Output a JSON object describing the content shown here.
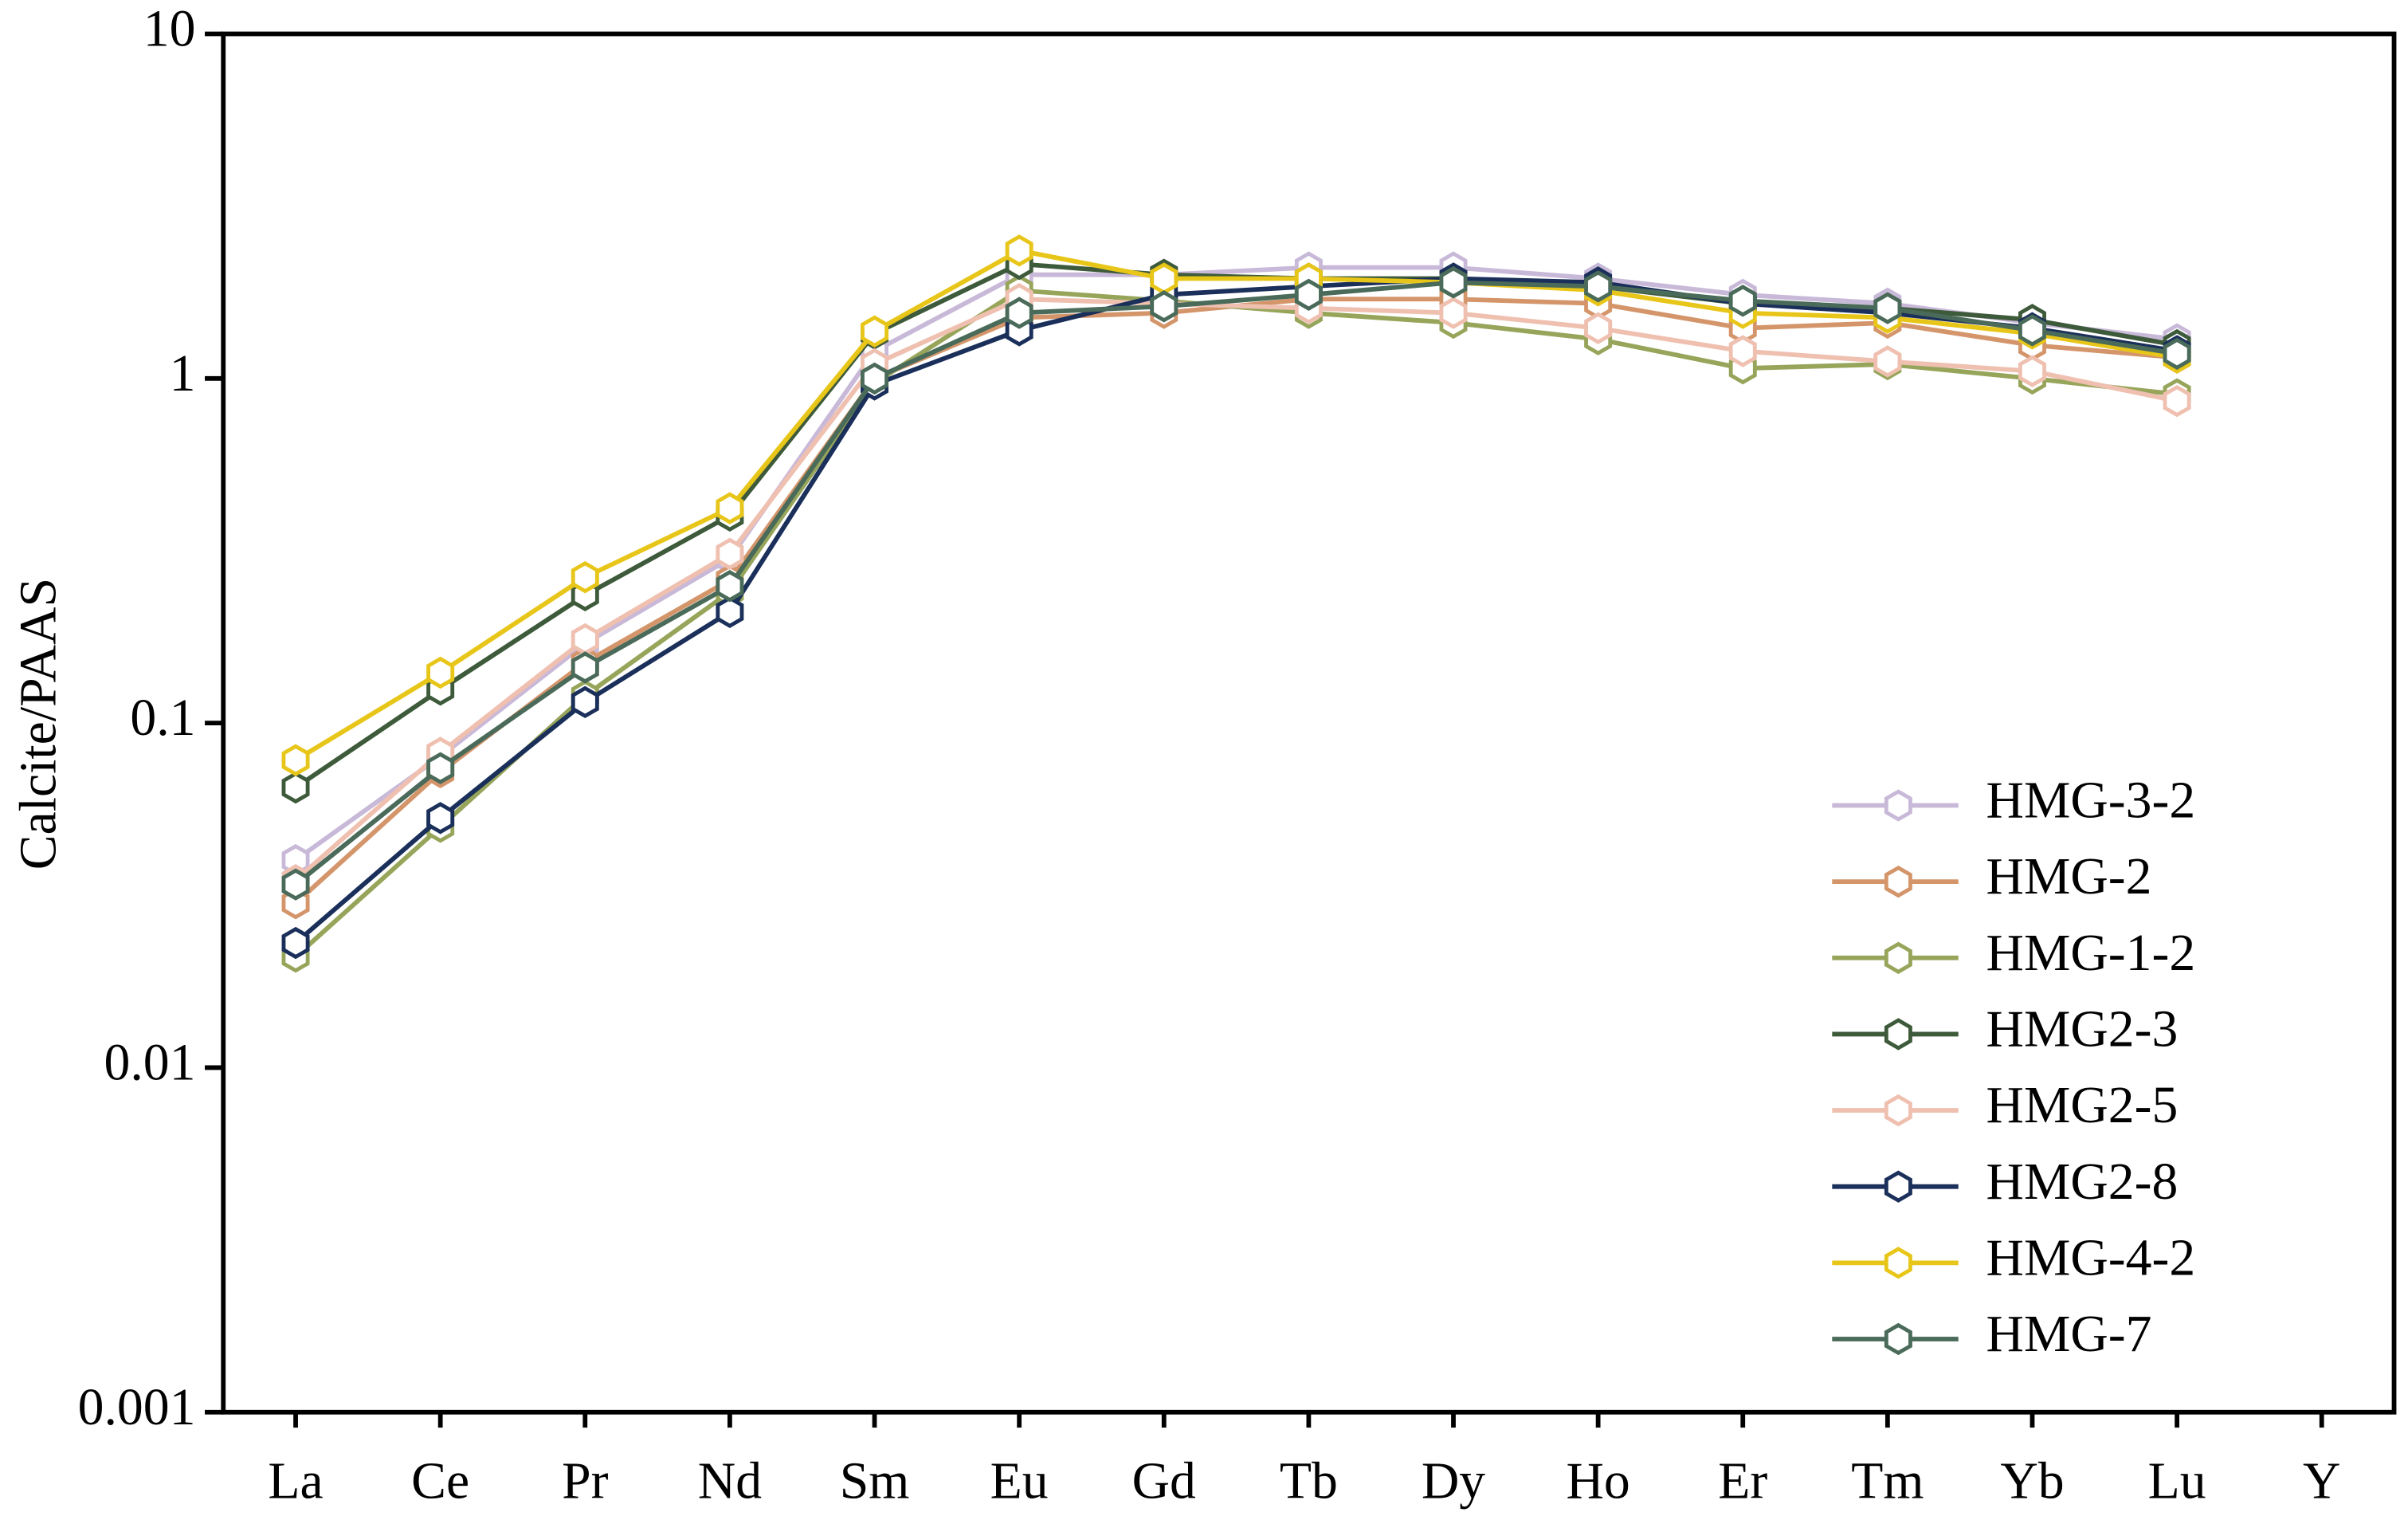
{
  "chart_data": {
    "type": "line",
    "y_label": "Calcite/PAAS",
    "log_scale_y": true,
    "legend_position": "lower right",
    "categories": [
      "La",
      "Ce",
      "Pr",
      "Nd",
      "Sm",
      "Eu",
      "Gd",
      "Tb",
      "Dy",
      "Ho",
      "Er",
      "Tm",
      "Yb",
      "Lu",
      "Y"
    ],
    "ylim": [
      0.001,
      10
    ],
    "yticks": [
      0.001,
      0.01,
      0.1,
      1,
      10
    ],
    "series": [
      {
        "name": "HMG-3-2",
        "color": "#c9b9d9",
        "values": [
          0.04,
          0.08,
          0.17,
          0.3,
          1.2,
          2.0,
          2.0,
          2.1,
          2.1,
          1.95,
          1.75,
          1.65,
          1.45,
          1.3,
          null
        ]
      },
      {
        "name": "HMG-2",
        "color": "#d4956a",
        "values": [
          0.03,
          0.072,
          0.15,
          0.26,
          1.0,
          1.5,
          1.55,
          1.7,
          1.7,
          1.65,
          1.4,
          1.45,
          1.25,
          1.15,
          null
        ]
      },
      {
        "name": "HMG-1-2",
        "color": "#96a55a",
        "values": [
          0.021,
          0.05,
          0.12,
          0.24,
          0.97,
          1.8,
          1.68,
          1.55,
          1.45,
          1.3,
          1.07,
          1.1,
          1.0,
          0.9,
          null
        ]
      },
      {
        "name": "HMG2-3",
        "color": "#3d5a3a",
        "values": [
          0.065,
          0.125,
          0.235,
          0.4,
          1.35,
          2.15,
          2.0,
          1.95,
          1.95,
          1.85,
          1.65,
          1.6,
          1.48,
          1.25,
          null
        ]
      },
      {
        "name": "HMG2-5",
        "color": "#efc0b0",
        "values": [
          0.035,
          0.082,
          0.175,
          0.31,
          1.1,
          1.7,
          1.65,
          1.6,
          1.55,
          1.4,
          1.2,
          1.12,
          1.05,
          0.86,
          null
        ]
      },
      {
        "name": "HMG2-8",
        "color": "#1a2f5a",
        "values": [
          0.023,
          0.053,
          0.115,
          0.21,
          0.96,
          1.38,
          1.75,
          1.85,
          1.95,
          1.9,
          1.65,
          1.55,
          1.4,
          1.2,
          null
        ]
      },
      {
        "name": "HMG-4-2",
        "color": "#e8c619",
        "values": [
          0.078,
          0.14,
          0.265,
          0.42,
          1.37,
          2.35,
          1.95,
          1.95,
          1.9,
          1.8,
          1.55,
          1.5,
          1.35,
          1.15,
          null
        ]
      },
      {
        "name": "HMG-7",
        "color": "#4a6a5a",
        "values": [
          0.034,
          0.074,
          0.145,
          0.25,
          1.0,
          1.55,
          1.62,
          1.75,
          1.9,
          1.85,
          1.68,
          1.6,
          1.38,
          1.18,
          null
        ]
      }
    ]
  }
}
